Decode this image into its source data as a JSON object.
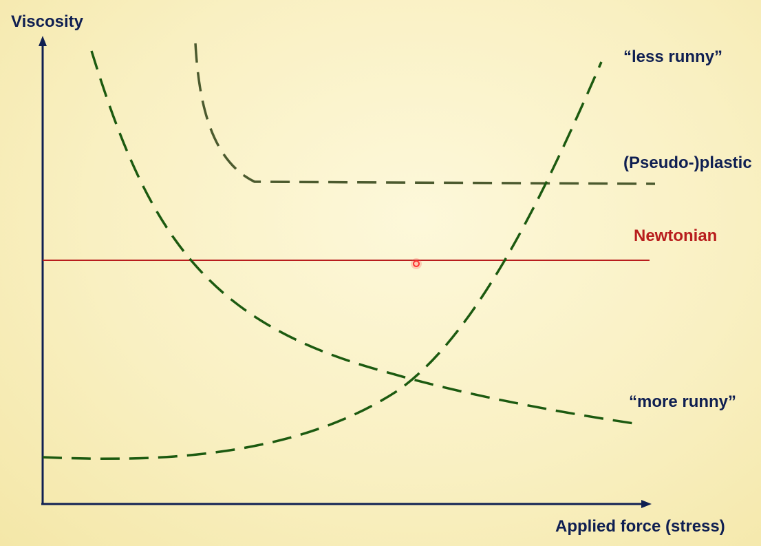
{
  "axes": {
    "y_label": "Viscosity",
    "x_label": "Applied force (stress)"
  },
  "curves": {
    "less_runny": {
      "label": "“less runny”"
    },
    "pseudo_plastic": {
      "label": "(Pseudo-)plastic"
    },
    "newtonian": {
      "label": "Newtonian"
    },
    "more_runny": {
      "label": "“more runny”"
    }
  },
  "colors": {
    "axis": "#0f1f52",
    "label": "#0f1f52",
    "newtonian": "#b81d1d",
    "dashed_green": "#1c5a10",
    "plastic_curve": "#4b5a2e",
    "cursor": "#ff4a4a"
  }
}
